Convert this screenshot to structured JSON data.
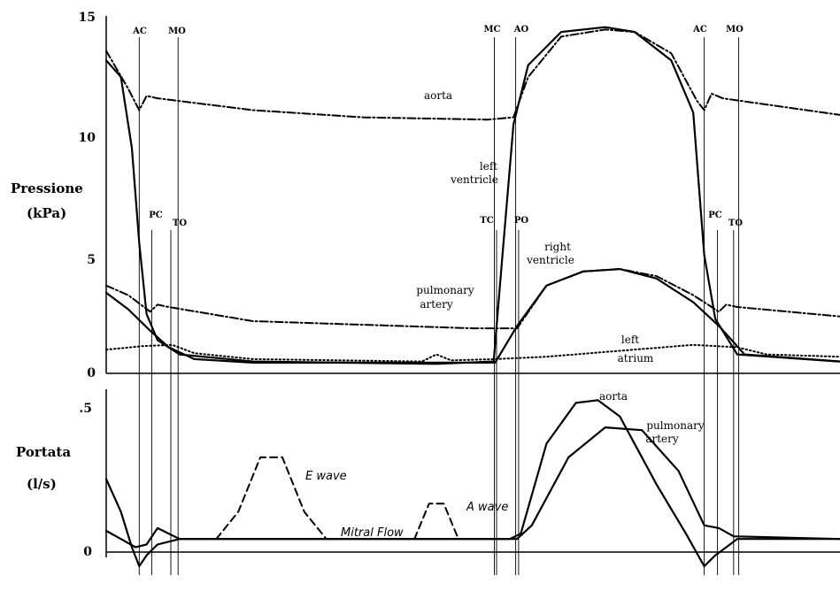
{
  "chart_data": [
    {
      "type": "line",
      "panel": "pressure",
      "ylabel": [
        "Pressione",
        "(kPa)"
      ],
      "ylim": [
        0,
        15
      ],
      "yticks": [
        "0",
        "5",
        "10",
        "15"
      ],
      "ytick_values": [
        0,
        5,
        10,
        15
      ],
      "x_range": [
        0,
        1
      ],
      "event_markers": [
        {
          "label": "AC",
          "x": 0.045
        },
        {
          "label": "MO",
          "x": 0.098
        },
        {
          "label": "PC",
          "x": 0.062
        },
        {
          "label": "TO",
          "x": 0.088
        },
        {
          "label": "MC",
          "x": 0.529
        },
        {
          "label": "AO",
          "x": 0.558
        },
        {
          "label": "TC",
          "x": 0.532
        },
        {
          "label": "PO",
          "x": 0.562
        },
        {
          "label": "AC",
          "x": 0.815
        },
        {
          "label": "MO",
          "x": 0.862
        },
        {
          "label": "PC",
          "x": 0.833
        },
        {
          "label": "TO",
          "x": 0.855
        }
      ],
      "series": [
        {
          "name": "aorta",
          "style": "dash-dot",
          "points": [
            [
              0,
              13.6
            ],
            [
              0.03,
              12.0
            ],
            [
              0.045,
              11.1
            ],
            [
              0.055,
              11.7
            ],
            [
              0.07,
              11.6
            ],
            [
              0.2,
              11.1
            ],
            [
              0.35,
              10.8
            ],
            [
              0.52,
              10.7
            ],
            [
              0.555,
              10.8
            ],
            [
              0.575,
              12.5
            ],
            [
              0.62,
              14.2
            ],
            [
              0.68,
              14.5
            ],
            [
              0.72,
              14.4
            ],
            [
              0.77,
              13.5
            ],
            [
              0.805,
              11.5
            ],
            [
              0.815,
              11.1
            ],
            [
              0.825,
              11.8
            ],
            [
              0.84,
              11.6
            ],
            [
              1.0,
              10.9
            ]
          ]
        },
        {
          "name": "left ventricle",
          "style": "solid",
          "points": [
            [
              0,
              13.2
            ],
            [
              0.02,
              12.5
            ],
            [
              0.035,
              9.5
            ],
            [
              0.045,
              5.5
            ],
            [
              0.055,
              2.5
            ],
            [
              0.07,
              1.4
            ],
            [
              0.1,
              0.8
            ],
            [
              0.2,
              0.5
            ],
            [
              0.45,
              0.4
            ],
            [
              0.528,
              0.5
            ],
            [
              0.54,
              5.0
            ],
            [
              0.555,
              10.5
            ],
            [
              0.575,
              13.0
            ],
            [
              0.62,
              14.4
            ],
            [
              0.68,
              14.6
            ],
            [
              0.72,
              14.4
            ],
            [
              0.77,
              13.2
            ],
            [
              0.8,
              11.0
            ],
            [
              0.815,
              5.0
            ],
            [
              0.83,
              2.3
            ],
            [
              0.86,
              0.8
            ],
            [
              1.0,
              0.5
            ]
          ]
        },
        {
          "name": "pulmonary artery",
          "style": "dash-dot",
          "points": [
            [
              0,
              3.7
            ],
            [
              0.03,
              3.3
            ],
            [
              0.06,
              2.6
            ],
            [
              0.07,
              2.9
            ],
            [
              0.085,
              2.8
            ],
            [
              0.2,
              2.2
            ],
            [
              0.5,
              1.9
            ],
            [
              0.56,
              1.9
            ],
            [
              0.6,
              3.7
            ],
            [
              0.65,
              4.3
            ],
            [
              0.7,
              4.4
            ],
            [
              0.75,
              4.1
            ],
            [
              0.8,
              3.3
            ],
            [
              0.835,
              2.6
            ],
            [
              0.845,
              2.9
            ],
            [
              0.86,
              2.8
            ],
            [
              1.0,
              2.4
            ]
          ]
        },
        {
          "name": "right ventricle",
          "style": "solid",
          "points": [
            [
              0,
              3.4
            ],
            [
              0.03,
              2.7
            ],
            [
              0.06,
              1.8
            ],
            [
              0.085,
              1.1
            ],
            [
              0.12,
              0.6
            ],
            [
              0.2,
              0.45
            ],
            [
              0.53,
              0.45
            ],
            [
              0.56,
              2.0
            ],
            [
              0.6,
              3.7
            ],
            [
              0.65,
              4.3
            ],
            [
              0.7,
              4.4
            ],
            [
              0.75,
              4.0
            ],
            [
              0.8,
              3.0
            ],
            [
              0.835,
              2.0
            ],
            [
              0.87,
              0.8
            ],
            [
              1.0,
              0.5
            ]
          ]
        },
        {
          "name": "left atrium",
          "style": "dotted",
          "points": [
            [
              0,
              1.0
            ],
            [
              0.05,
              1.15
            ],
            [
              0.09,
              1.2
            ],
            [
              0.12,
              0.85
            ],
            [
              0.2,
              0.6
            ],
            [
              0.43,
              0.5
            ],
            [
              0.45,
              0.8
            ],
            [
              0.47,
              0.55
            ],
            [
              0.53,
              0.6
            ],
            [
              0.6,
              0.7
            ],
            [
              0.8,
              1.2
            ],
            [
              0.86,
              1.1
            ],
            [
              0.9,
              0.8
            ],
            [
              1.0,
              0.7
            ]
          ]
        }
      ],
      "annotations": [
        {
          "text": "aorta"
        },
        {
          "text": "left"
        },
        {
          "text": "ventricle"
        },
        {
          "text": "right"
        },
        {
          "text": "ventricle"
        },
        {
          "text": "pulmonary"
        },
        {
          "text": "artery"
        },
        {
          "text": "left"
        },
        {
          "text": "atrium"
        }
      ]
    },
    {
      "type": "line",
      "panel": "flow",
      "ylabel": [
        "Portata",
        "(l/s)"
      ],
      "ylim": [
        -0.1,
        0.55
      ],
      "yticks": [
        "0",
        ".5"
      ],
      "ytick_values": [
        0,
        0.5
      ],
      "x_range": [
        0,
        1
      ],
      "series": [
        {
          "name": "aorta",
          "style": "solid",
          "points": [
            [
              0,
              0.22
            ],
            [
              0.02,
              0.1
            ],
            [
              0.035,
              -0.03
            ],
            [
              0.045,
              -0.1
            ],
            [
              0.055,
              -0.06
            ],
            [
              0.07,
              -0.02
            ],
            [
              0.1,
              0.0
            ],
            [
              0.55,
              0.0
            ],
            [
              0.565,
              0.02
            ],
            [
              0.6,
              0.35
            ],
            [
              0.64,
              0.5
            ],
            [
              0.67,
              0.51
            ],
            [
              0.7,
              0.45
            ],
            [
              0.75,
              0.2
            ],
            [
              0.79,
              0.02
            ],
            [
              0.815,
              -0.1
            ],
            [
              0.83,
              -0.06
            ],
            [
              0.86,
              0.0
            ],
            [
              1.0,
              0.0
            ]
          ]
        },
        {
          "name": "pulmonary artery",
          "style": "solid",
          "points": [
            [
              0,
              0.03
            ],
            [
              0.02,
              0.0
            ],
            [
              0.04,
              -0.03
            ],
            [
              0.055,
              -0.02
            ],
            [
              0.07,
              0.04
            ],
            [
              0.085,
              0.02
            ],
            [
              0.1,
              0.0
            ],
            [
              0.56,
              0.0
            ],
            [
              0.58,
              0.05
            ],
            [
              0.63,
              0.3
            ],
            [
              0.68,
              0.41
            ],
            [
              0.73,
              0.4
            ],
            [
              0.78,
              0.25
            ],
            [
              0.815,
              0.05
            ],
            [
              0.835,
              0.04
            ],
            [
              0.855,
              0.01
            ],
            [
              1.0,
              0.0
            ]
          ]
        },
        {
          "name": "E wave",
          "style": "dashed",
          "points": [
            [
              0.15,
              0.0
            ],
            [
              0.18,
              0.1
            ],
            [
              0.21,
              0.3
            ],
            [
              0.24,
              0.3
            ],
            [
              0.27,
              0.1
            ],
            [
              0.3,
              0.0
            ]
          ]
        },
        {
          "name": "A wave",
          "style": "dashed",
          "points": [
            [
              0.42,
              0.0
            ],
            [
              0.44,
              0.13
            ],
            [
              0.46,
              0.13
            ],
            [
              0.48,
              0.0
            ]
          ]
        }
      ],
      "annotations": [
        {
          "text": "aorta"
        },
        {
          "text": "pulmonary"
        },
        {
          "text": "artery"
        },
        {
          "text": "E wave"
        },
        {
          "text": "Mitral Flow"
        },
        {
          "text": "A wave"
        }
      ]
    }
  ]
}
